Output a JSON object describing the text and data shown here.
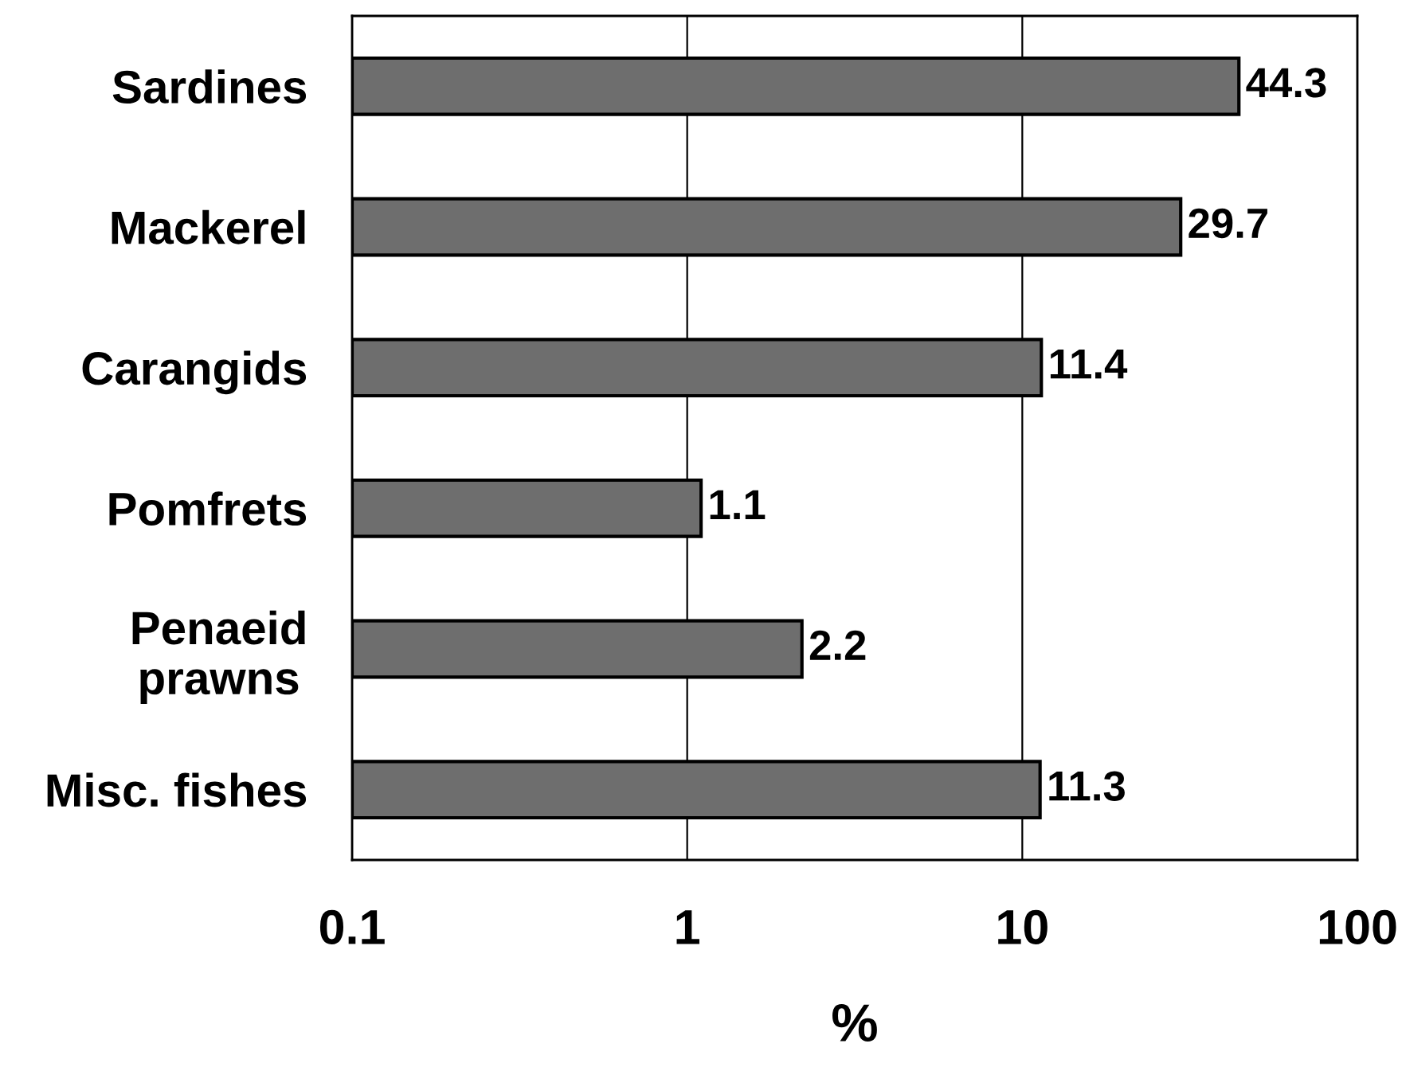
{
  "chart_data": {
    "type": "bar",
    "orientation": "horizontal",
    "xlabel": "%",
    "categories": [
      "Sardines",
      "Mackerel",
      "Carangids",
      "Pomfrets",
      "Penaeid\nprawns",
      "Misc. fishes"
    ],
    "values": [
      44.3,
      29.7,
      11.4,
      1.1,
      2.2,
      11.3
    ],
    "color": "#6e6e6e",
    "xlim": [
      0.1,
      100
    ],
    "xticks": [
      0.1,
      1,
      10,
      100
    ],
    "log": "x",
    "grid": "x",
    "data_labels": true
  }
}
